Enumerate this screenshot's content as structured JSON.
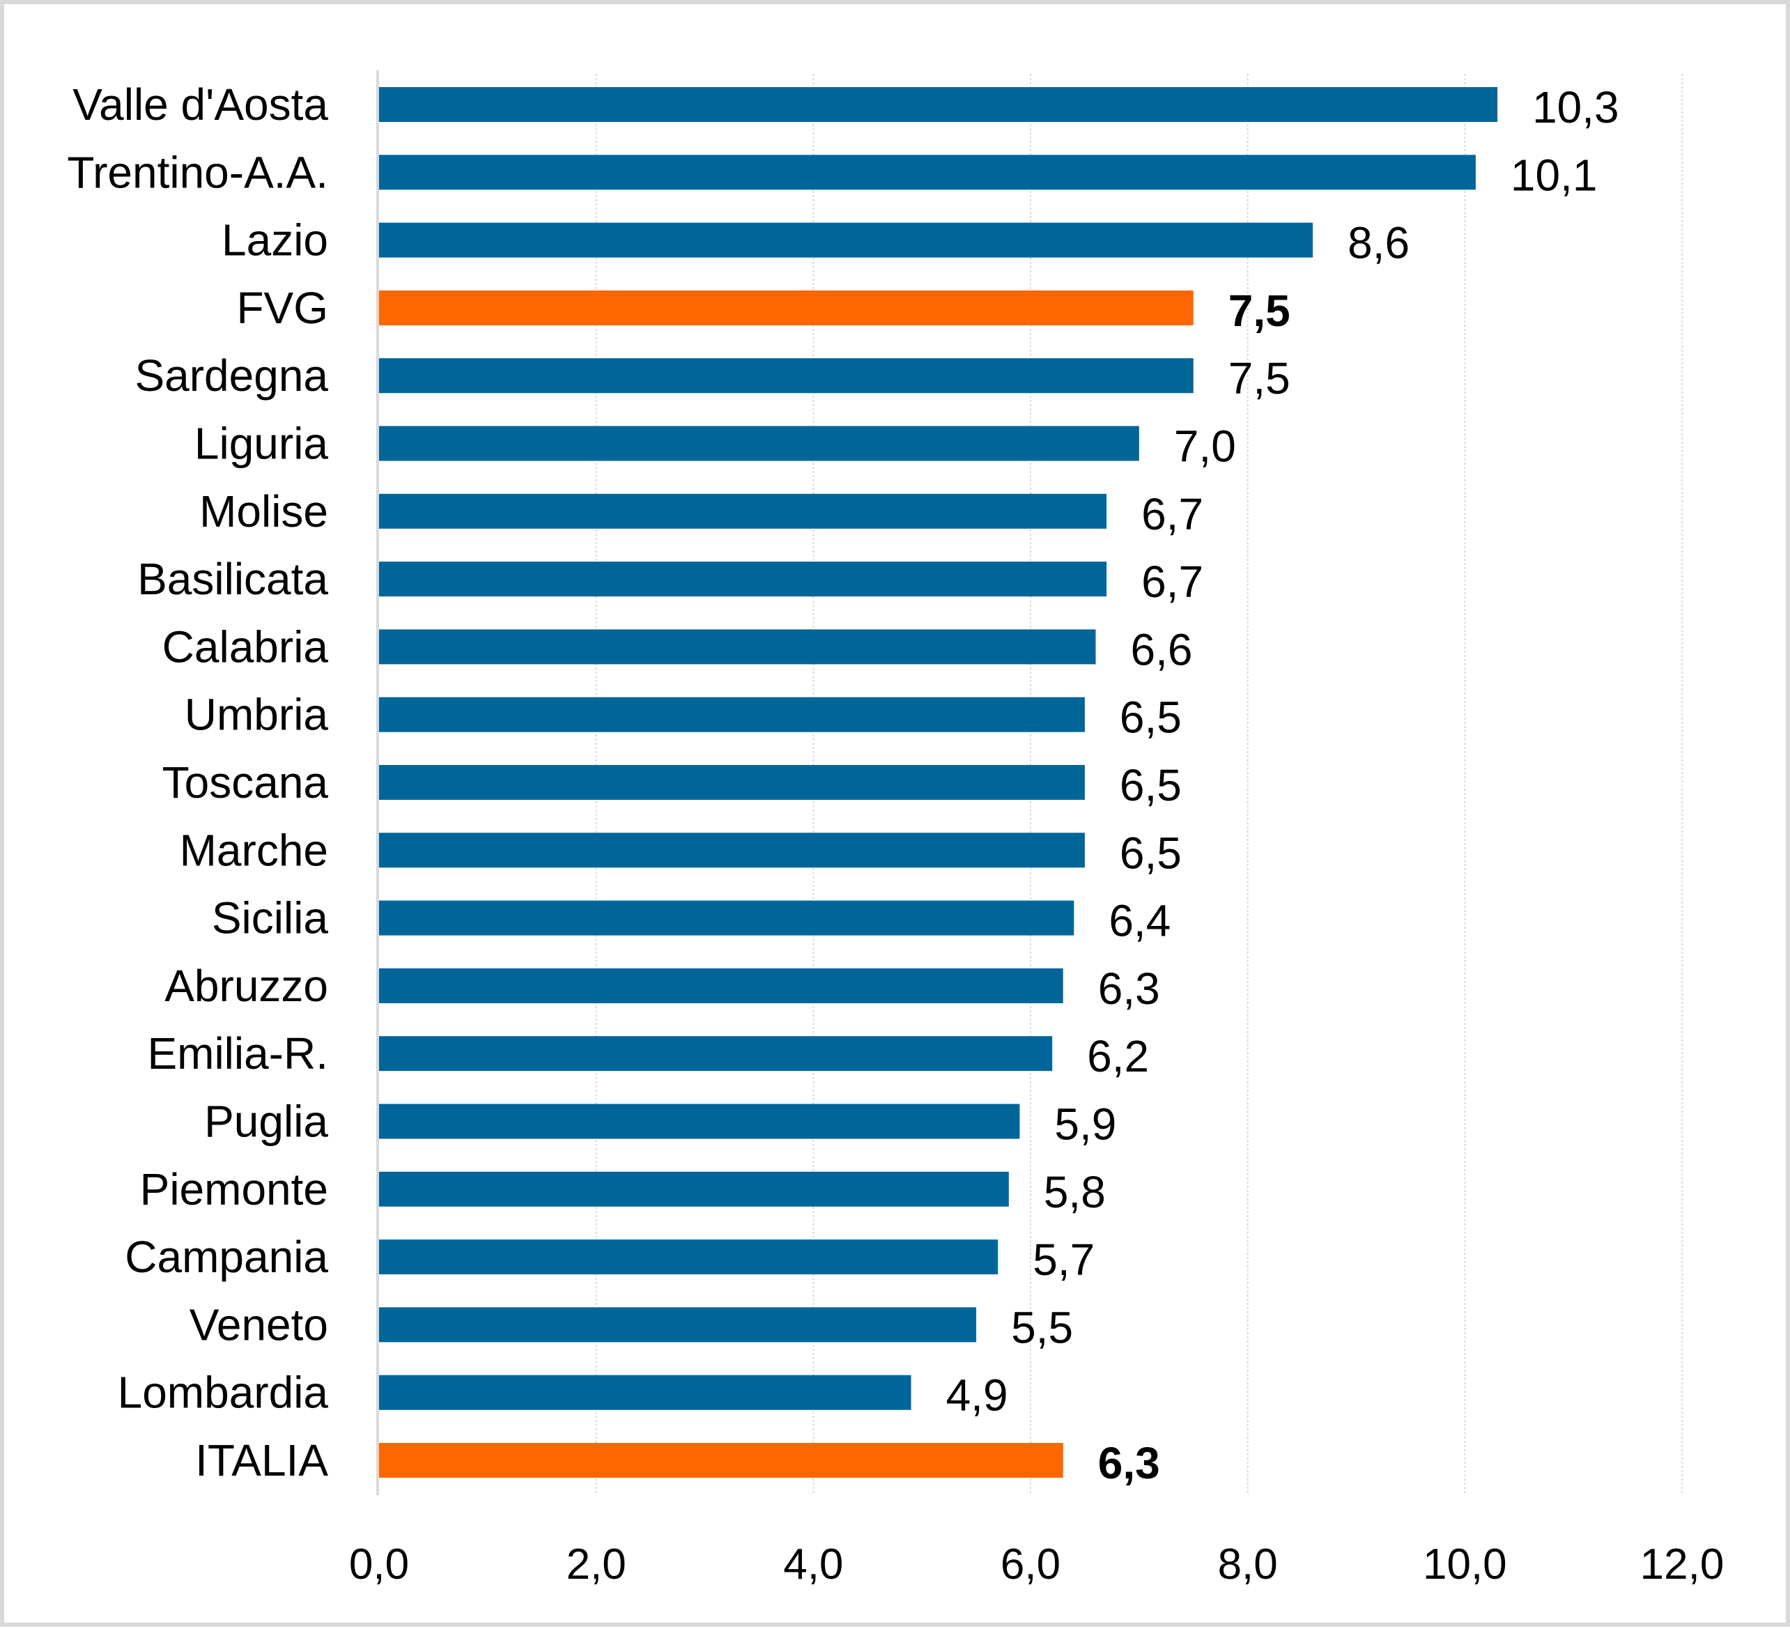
{
  "chart_data": {
    "type": "bar",
    "orientation": "horizontal",
    "categories": [
      "Valle d'Aosta",
      "Trentino-A.A.",
      "Lazio",
      "FVG",
      "Sardegna",
      "Liguria",
      "Molise",
      "Basilicata",
      "Calabria",
      "Umbria",
      "Toscana",
      "Marche",
      "Sicilia",
      "Abruzzo",
      "Emilia-R.",
      "Puglia",
      "Piemonte",
      "Campania",
      "Veneto",
      "Lombardia",
      "ITALIA"
    ],
    "values": [
      10.3,
      10.1,
      8.6,
      7.5,
      7.5,
      7.0,
      6.7,
      6.7,
      6.6,
      6.5,
      6.5,
      6.5,
      6.4,
      6.3,
      6.2,
      5.9,
      5.8,
      5.7,
      5.5,
      4.9,
      6.3
    ],
    "value_labels": [
      "10,3",
      "10,1",
      "8,6",
      "7,5",
      "7,5",
      "7,0",
      "6,7",
      "6,7",
      "6,6",
      "6,5",
      "6,5",
      "6,5",
      "6,4",
      "6,3",
      "6,2",
      "5,9",
      "5,8",
      "5,7",
      "5,5",
      "4,9",
      "6,3"
    ],
    "highlight": [
      "FVG",
      "ITALIA"
    ],
    "xlim": [
      0,
      12
    ],
    "x_ticks": [
      0,
      2,
      4,
      6,
      8,
      10,
      12
    ],
    "x_tick_labels": [
      "0,0",
      "2,0",
      "4,0",
      "6,0",
      "8,0",
      "10,0",
      "12,0"
    ],
    "grid": "vertical",
    "legend": "none",
    "title": "",
    "xlabel": "",
    "ylabel": "",
    "colors": {
      "bar": "#00669a",
      "highlight": "#ff6600",
      "grid": "#d9d9d9",
      "axis": "#d9d9d9"
    }
  }
}
